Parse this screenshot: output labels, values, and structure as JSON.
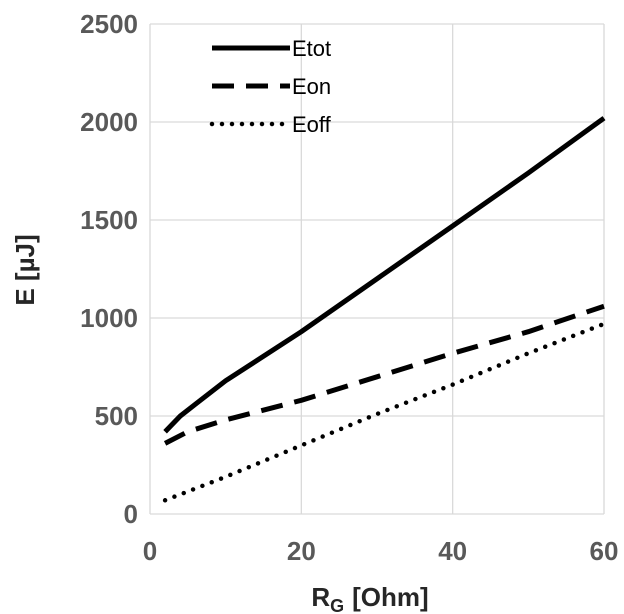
{
  "chart_data": {
    "type": "line",
    "xlabel": {
      "main": "R",
      "sub": "G",
      "unit": "[Ohm]"
    },
    "ylabel": "E  [µJ]",
    "xlim": [
      0,
      60
    ],
    "ylim": [
      0,
      2500
    ],
    "xticks": [
      0,
      20,
      40,
      60
    ],
    "xtick_labels": [
      "0",
      "20",
      "40",
      "60"
    ],
    "yticks": [
      0,
      500,
      1000,
      1500,
      2000,
      2500
    ],
    "ytick_labels": [
      "0",
      "500",
      "1000",
      "1500",
      "2000",
      "2500"
    ],
    "grid": true,
    "legend_position": "top-left",
    "series": [
      {
        "name": "Etot",
        "style": "solid",
        "color": "#000000",
        "x": [
          2,
          4,
          6,
          10,
          20,
          30,
          40,
          50,
          60
        ],
        "y": [
          420,
          500,
          560,
          680,
          930,
          1200,
          1470,
          1740,
          2020
        ]
      },
      {
        "name": "Eon",
        "style": "dashed",
        "color": "#000000",
        "x": [
          2,
          5,
          10,
          20,
          30,
          40,
          50,
          60
        ],
        "y": [
          360,
          420,
          480,
          580,
          700,
          820,
          930,
          1060
        ]
      },
      {
        "name": "Eoff",
        "style": "dotted",
        "color": "#000000",
        "x": [
          2,
          10,
          20,
          30,
          40,
          50,
          60
        ],
        "y": [
          70,
          190,
          350,
          510,
          660,
          820,
          970
        ]
      }
    ]
  }
}
